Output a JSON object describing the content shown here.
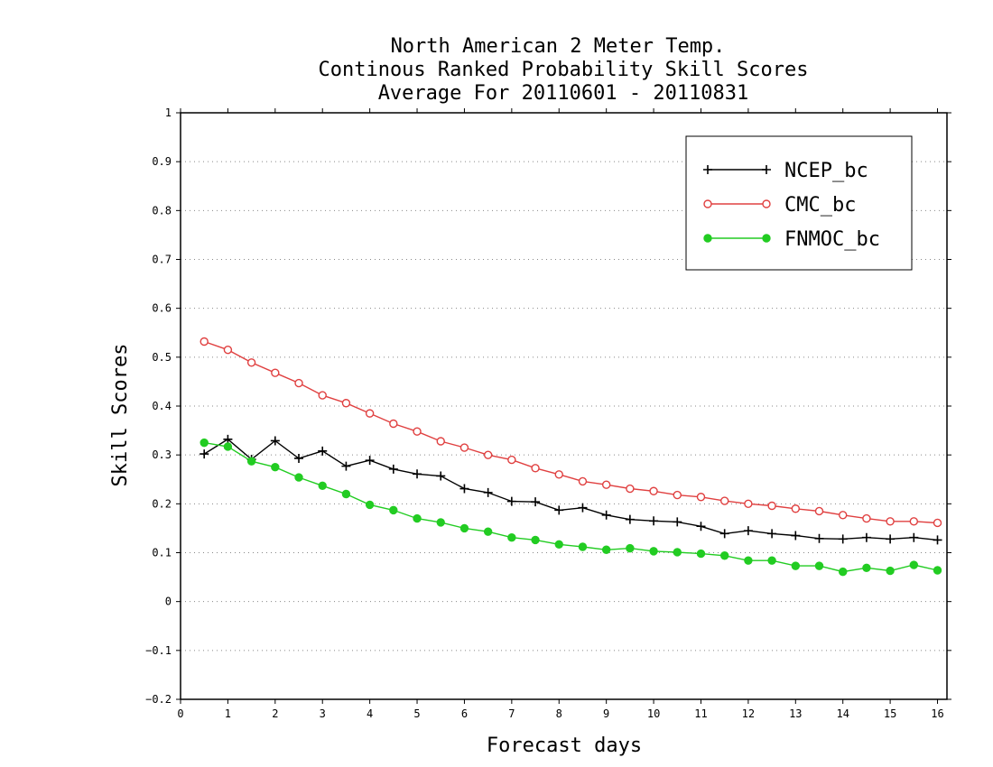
{
  "chart_data": {
    "type": "line",
    "title": [
      "North American 2 Meter Temp.",
      "Continous Ranked Probability Skill Scores",
      "Average For 20110601 - 20110831"
    ],
    "xlabel": "Forecast days",
    "ylabel": "Skill Scores",
    "xlim": [
      0,
      16.2
    ],
    "ylim": [
      -0.2,
      1
    ],
    "xticks": [
      0,
      1,
      2,
      3,
      4,
      5,
      6,
      7,
      8,
      9,
      10,
      11,
      12,
      13,
      14,
      15,
      16
    ],
    "yticks": [
      -0.2,
      -0.1,
      0,
      0.1,
      0.2,
      0.3,
      0.4,
      0.5,
      0.6,
      0.7,
      0.8,
      0.9,
      1
    ],
    "ytick_labels": [
      "−0.2",
      "−0.1",
      "0",
      "0.1",
      "0.2",
      "0.3",
      "0.4",
      "0.5",
      "0.6",
      "0.7",
      "0.8",
      "0.9",
      "1"
    ],
    "grid": "horizontal dotted",
    "legend_position": "top-right",
    "x": [
      0.5,
      1,
      1.5,
      2,
      2.5,
      3,
      3.5,
      4,
      4.5,
      5,
      5.5,
      6,
      6.5,
      7,
      7.5,
      8,
      8.5,
      9,
      9.5,
      10,
      10.5,
      11,
      11.5,
      12,
      12.5,
      13,
      13.5,
      14,
      14.5,
      15,
      15.5,
      16
    ],
    "series": [
      {
        "name": "NCEP_bc",
        "color": "#000000",
        "marker": "plus",
        "values": [
          0.302,
          0.332,
          0.291,
          0.329,
          0.293,
          0.308,
          0.277,
          0.289,
          0.271,
          0.261,
          0.257,
          0.231,
          0.223,
          0.205,
          0.204,
          0.187,
          0.192,
          0.177,
          0.168,
          0.165,
          0.163,
          0.154,
          0.139,
          0.145,
          0.139,
          0.135,
          0.129,
          0.128,
          0.131,
          0.128,
          0.131,
          0.126
        ]
      },
      {
        "name": "CMC_bc",
        "color": "#e04040",
        "marker": "open-circle",
        "values": [
          0.532,
          0.515,
          0.489,
          0.468,
          0.447,
          0.422,
          0.406,
          0.385,
          0.364,
          0.348,
          0.328,
          0.315,
          0.3,
          0.29,
          0.273,
          0.26,
          0.246,
          0.239,
          0.231,
          0.226,
          0.218,
          0.214,
          0.206,
          0.2,
          0.196,
          0.19,
          0.185,
          0.177,
          0.17,
          0.164,
          0.164,
          0.161
        ]
      },
      {
        "name": "FNMOC_bc",
        "color": "#22cc22",
        "marker": "filled-circle",
        "values": [
          0.325,
          0.317,
          0.287,
          0.275,
          0.254,
          0.237,
          0.22,
          0.198,
          0.187,
          0.17,
          0.162,
          0.15,
          0.143,
          0.131,
          0.126,
          0.117,
          0.112,
          0.106,
          0.109,
          0.103,
          0.101,
          0.098,
          0.094,
          0.084,
          0.084,
          0.073,
          0.073,
          0.061,
          0.069,
          0.063,
          0.075,
          0.064
        ]
      }
    ]
  }
}
